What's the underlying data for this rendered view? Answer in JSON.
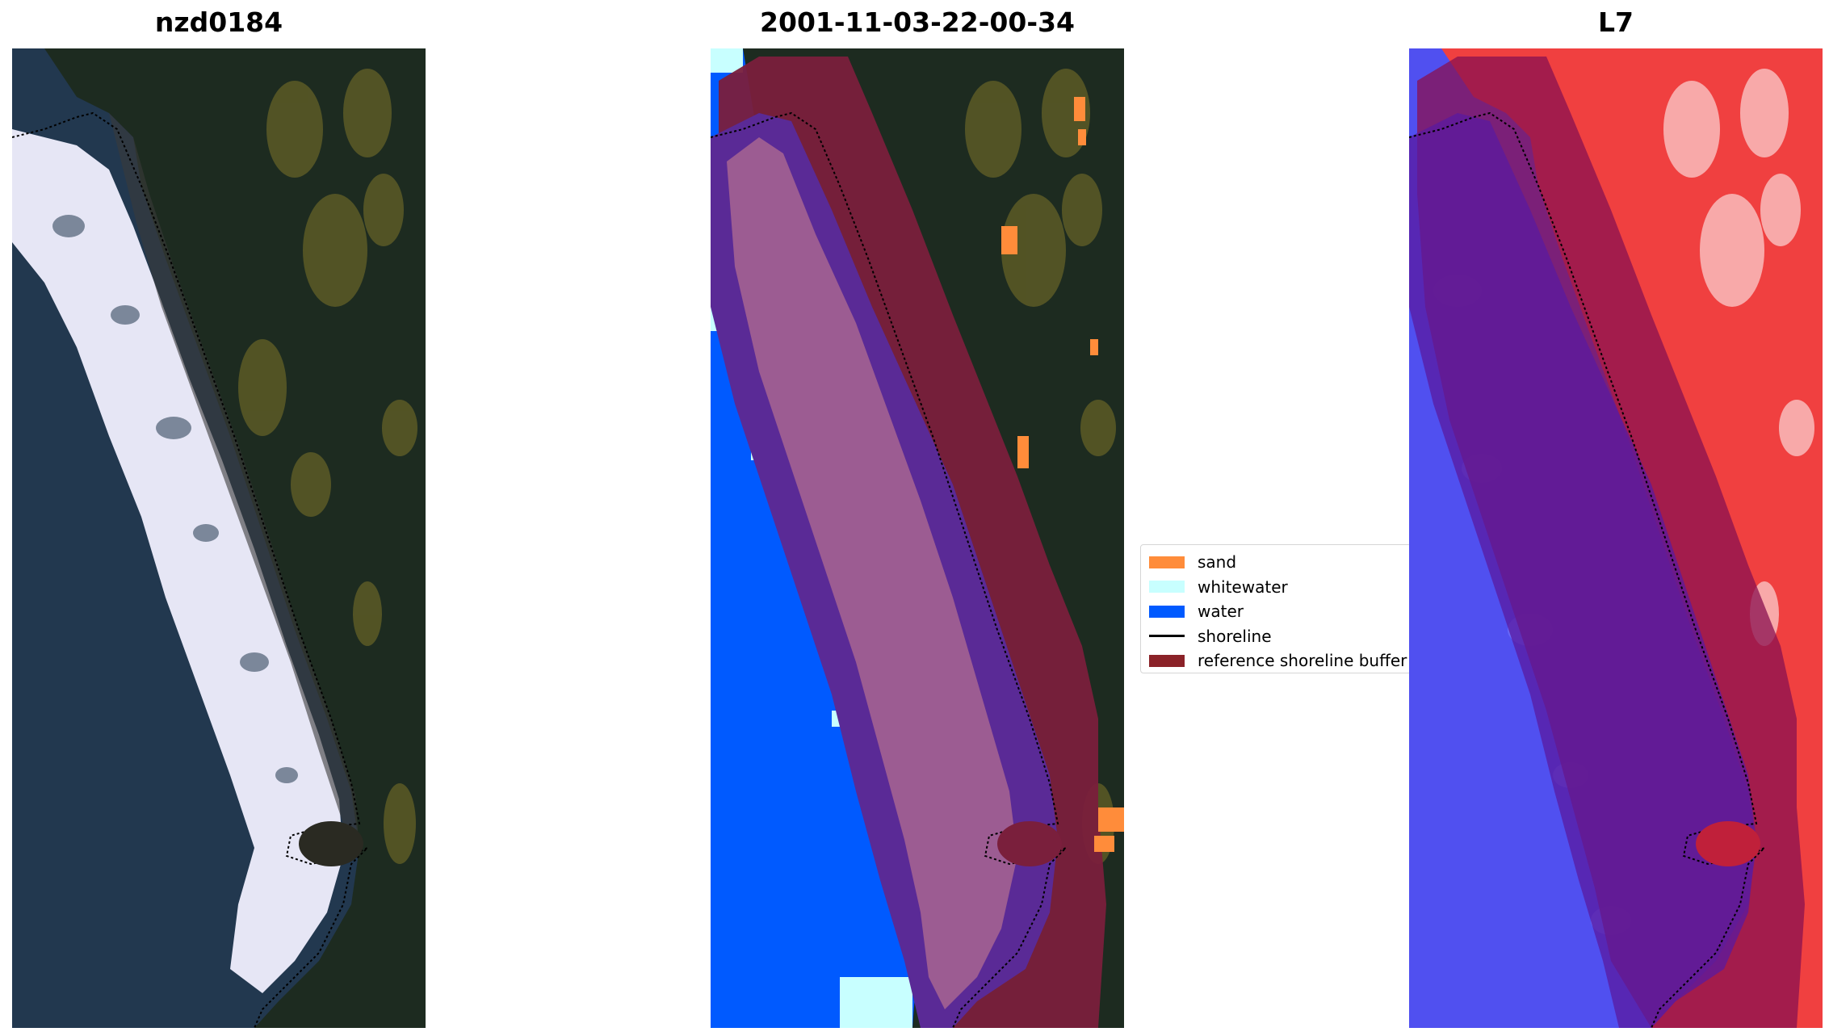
{
  "panels": [
    {
      "title": "nzd0184"
    },
    {
      "title": "2001-11-03-22-00-34"
    },
    {
      "title": "L7"
    }
  ],
  "legend": {
    "items": [
      {
        "label": "sand",
        "color": "#ff8c3a",
        "kind": "patch"
      },
      {
        "label": "whitewater",
        "color": "#c8ffff",
        "kind": "patch"
      },
      {
        "label": "water",
        "color": "#005aff",
        "kind": "patch"
      },
      {
        "label": "shoreline",
        "color": "#000000",
        "kind": "line"
      },
      {
        "label": "reference shoreline buffer",
        "color": "#8b2228",
        "kind": "patch"
      }
    ]
  },
  "colors": {
    "land": "#1d2b20",
    "vegetation": "#6b6a2c",
    "ocean": "#22384f",
    "surf": "#e6e6f5",
    "buffer": "#7a1f3c",
    "classified_sand_zone": "#9c5c92",
    "classified_water_zone": "#5a2a96",
    "index_water": "#5050f0",
    "index_land": "#f04040"
  }
}
